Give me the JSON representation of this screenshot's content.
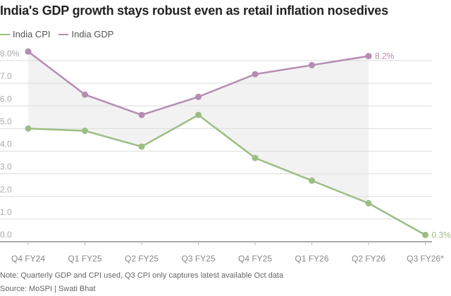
{
  "chart_data": {
    "type": "line",
    "title": "India's GDP growth stays robust even as retail inflation nosedives",
    "categories": [
      "Q4 FY24",
      "Q1 FY25",
      "Q2 FY25",
      "Q3 FY25",
      "Q4 FY25",
      "Q1 FY26",
      "Q2 FY26",
      "Q3 FY26*"
    ],
    "series": [
      {
        "name": "India CPI",
        "color": "#9dbd84",
        "values": [
          5.0,
          4.9,
          4.2,
          5.6,
          3.7,
          2.7,
          1.7,
          0.3
        ],
        "end_label": "0.3%"
      },
      {
        "name": "India GDP",
        "color": "#b48db2",
        "values": [
          8.4,
          6.5,
          5.6,
          6.4,
          7.4,
          7.8,
          8.2,
          null
        ],
        "end_label": "8.2%"
      }
    ],
    "ylim": [
      0,
      8
    ],
    "yticks": [
      "0.0",
      "1.0",
      "2.0",
      "3.0",
      "4.0",
      "5.0",
      "6.0",
      "7.0",
      "8.0%"
    ],
    "grid": true,
    "legend": "top-left",
    "shaded_gap": "between series, Q4 FY24 to Q2 FY26"
  },
  "note": "Note: Quarterly GDP and CPI used, Q3 CPI only captures latest available Oct data",
  "source": "Source: MoSPI | Swati Bhat"
}
